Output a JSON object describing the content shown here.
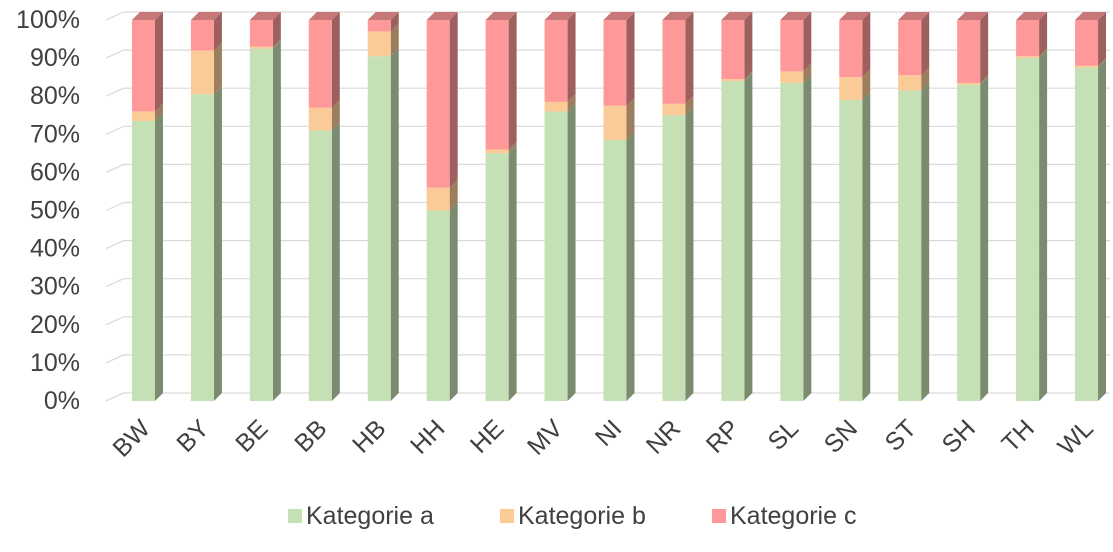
{
  "chart_data": {
    "type": "bar",
    "stacked": true,
    "percent_stacked": true,
    "style": "3d",
    "categories": [
      "BW",
      "BY",
      "BE",
      "BB",
      "HB",
      "HH",
      "HE",
      "MV",
      "NI",
      "NR",
      "RP",
      "SL",
      "SN",
      "ST",
      "SH",
      "TH",
      "WL"
    ],
    "series": [
      {
        "name": "Kategorie a",
        "color": "#c5e0b4",
        "values": [
          73.5,
          80.5,
          92.5,
          71,
          90.5,
          50,
          65,
          76,
          68.5,
          75,
          84,
          83.5,
          79,
          81.5,
          83,
          90,
          87.5
        ]
      },
      {
        "name": "Kategorie b",
        "color": "#fbcb97",
        "values": [
          2.5,
          11.5,
          0.5,
          6,
          6.5,
          6,
          1,
          2.5,
          9,
          3,
          0.5,
          3,
          6,
          4,
          0.5,
          0.5,
          0.5
        ]
      },
      {
        "name": "Kategorie c",
        "color": "#ff9999",
        "values": [
          24,
          8,
          7,
          23,
          3,
          44,
          34,
          21.5,
          22.5,
          22,
          15.5,
          13.5,
          15,
          14.5,
          16.5,
          9.5,
          12
        ]
      }
    ],
    "yaxis": {
      "ylim": [
        0,
        100
      ],
      "ticks": [
        0,
        10,
        20,
        30,
        40,
        50,
        60,
        70,
        80,
        90,
        100
      ],
      "tick_labels": [
        "0%",
        "10%",
        "20%",
        "30%",
        "40%",
        "50%",
        "60%",
        "70%",
        "80%",
        "90%",
        "100%"
      ]
    },
    "grid": true,
    "legend": "bottom",
    "title": "",
    "xlabel": "",
    "ylabel": ""
  }
}
